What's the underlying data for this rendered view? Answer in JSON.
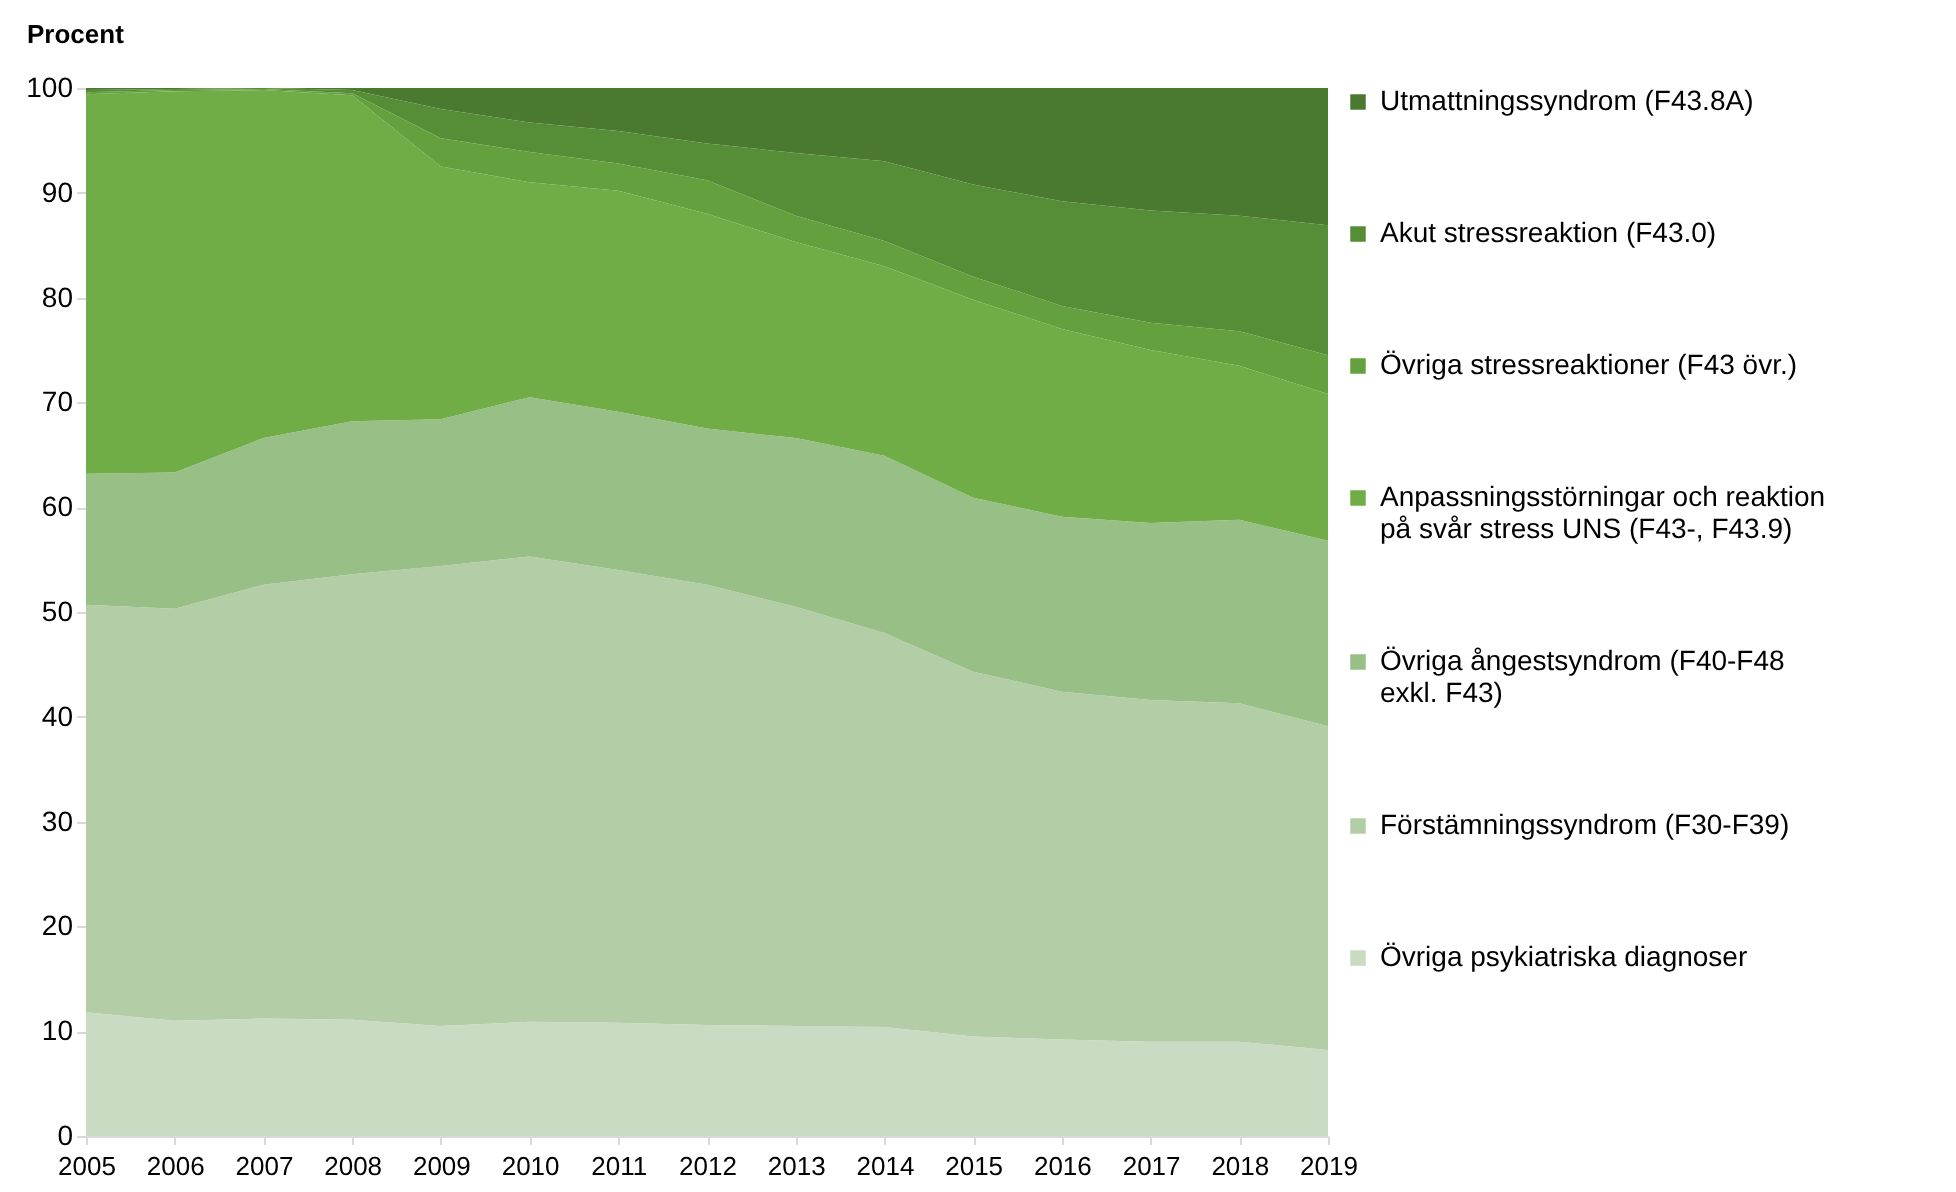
{
  "chart_data": {
    "type": "area",
    "stacked": true,
    "ylabel": "Procent",
    "x": [
      2005,
      2006,
      2007,
      2008,
      2009,
      2010,
      2011,
      2012,
      2013,
      2014,
      2015,
      2016,
      2017,
      2018,
      2019
    ],
    "xlim": [
      2005,
      2019
    ],
    "xticks": [
      2005,
      2006,
      2007,
      2008,
      2009,
      2010,
      2011,
      2012,
      2013,
      2014,
      2015,
      2016,
      2017,
      2018,
      2019
    ],
    "ylim": [
      0,
      100
    ],
    "yticks": [
      0,
      10,
      20,
      30,
      40,
      50,
      60,
      70,
      80,
      90,
      100
    ],
    "grid": false,
    "legend": "right",
    "series": [
      {
        "name": "Övriga psykiatriska diagnoser",
        "color": "#c9dcc3",
        "values": [
          11.8,
          11.0,
          11.2,
          11.1,
          10.5,
          10.9,
          10.8,
          10.6,
          10.5,
          10.4,
          9.5,
          9.2,
          9.0,
          9.0,
          8.2
        ]
      },
      {
        "name": "Förstämningssyndrom (F30-F39)",
        "color": "#b3cda7",
        "values": [
          38.9,
          39.3,
          41.4,
          42.5,
          43.9,
          44.4,
          43.2,
          42.0,
          40.0,
          37.6,
          34.8,
          33.2,
          32.6,
          32.3,
          30.9
        ]
      },
      {
        "name": "Övriga ångestsyndrom (F40-F48 exkl. F43)",
        "color": "#98bf86",
        "values": [
          12.5,
          13.0,
          14.0,
          14.6,
          14.0,
          15.2,
          15.1,
          14.9,
          16.1,
          16.9,
          16.6,
          16.7,
          16.9,
          17.5,
          17.7
        ]
      },
      {
        "name": "Anpassningsstörningar och reaktion på svår stress UNS (F43-, F43.9)",
        "color": "#70ad47",
        "values": [
          36.2,
          36.4,
          33.2,
          31.1,
          24.1,
          20.5,
          21.1,
          20.5,
          18.7,
          18.1,
          18.9,
          17.9,
          16.5,
          14.7,
          14.0
        ]
      },
      {
        "name": "Övriga stressreaktioner (F43 övr.)",
        "color": "#64a03e",
        "values": [
          0.2,
          0.1,
          0.1,
          0.2,
          2.7,
          2.9,
          2.6,
          3.2,
          2.5,
          2.4,
          2.2,
          2.2,
          2.6,
          3.3,
          3.7
        ]
      },
      {
        "name": "Akut stressreaktion (F43.0)",
        "color": "#568e37",
        "values": [
          0.2,
          0.1,
          0.1,
          0.3,
          2.8,
          2.8,
          3.1,
          3.5,
          6.0,
          7.6,
          8.8,
          10.0,
          10.7,
          11.0,
          12.4
        ]
      },
      {
        "name": "Utmattningssyndrom (F43.8A)",
        "color": "#4a7a2f",
        "values": [
          0.2,
          0.1,
          0.0,
          0.2,
          2.0,
          3.3,
          4.1,
          5.3,
          6.2,
          7.0,
          9.2,
          10.8,
          11.7,
          12.2,
          13.1
        ]
      }
    ]
  }
}
